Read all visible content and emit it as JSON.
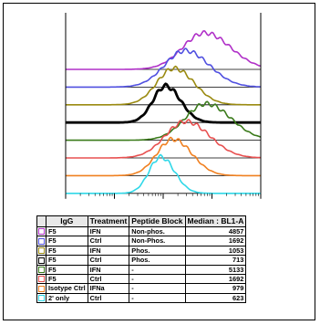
{
  "chart_data": {
    "type": "overlay-histogram",
    "x_scale": "log",
    "x_decades": 4,
    "series": [
      {
        "igg": "F5",
        "treatment": "IFN",
        "peptide_block": "Non-phos.",
        "median": "4857",
        "color": "#b030c8",
        "peak_log": 2.85,
        "width": 0.45
      },
      {
        "igg": "F5",
        "treatment": "Ctrl",
        "peptide_block": "Non-Phos.",
        "median": "1692",
        "color": "#5050e0",
        "peak_log": 2.45,
        "width": 0.42
      },
      {
        "igg": "F5",
        "treatment": "IFN",
        "peptide_block": "Phos.",
        "median": "1053",
        "color": "#9a8a10",
        "peak_log": 2.22,
        "width": 0.35
      },
      {
        "igg": "F5",
        "treatment": "Ctrl",
        "peptide_block": "Phos.",
        "median": "713",
        "color": "#000000",
        "peak_log": 2.05,
        "width": 0.26
      },
      {
        "igg": "F5",
        "treatment": "IFN",
        "peptide_block": "-",
        "median": "5133",
        "color": "#3a7a1a",
        "peak_log": 2.88,
        "width": 0.43
      },
      {
        "igg": "F5",
        "treatment": "Ctrl",
        "peptide_block": "-",
        "median": "1692",
        "color": "#e85050",
        "peak_log": 2.46,
        "width": 0.42
      },
      {
        "igg": "Isotype Ctrl",
        "treatment": "IFNa",
        "peptide_block": "-",
        "median": "979",
        "color": "#f08020",
        "peak_log": 2.2,
        "width": 0.33
      },
      {
        "igg": "2' only",
        "treatment": "Ctrl",
        "peptide_block": "-",
        "median": "623",
        "color": "#30d8e8",
        "peak_log": 1.95,
        "width": 0.24
      }
    ]
  },
  "legend": {
    "headers": [
      "IgG",
      "Treatment",
      "Peptide Block",
      "Median : BL1-A"
    ]
  }
}
